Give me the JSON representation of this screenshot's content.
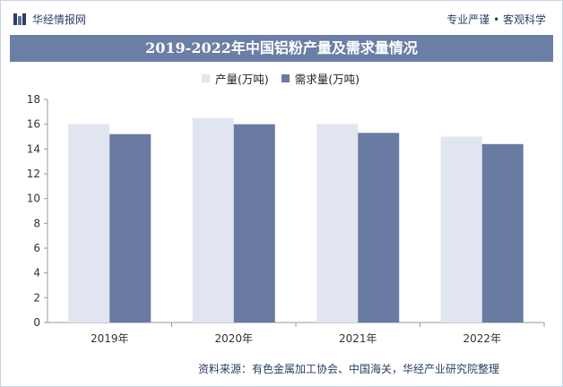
{
  "header": {
    "brand": "华经情报网",
    "tagline": "专业严谨 • 客观科学"
  },
  "colors": {
    "title_bg": "#6b7fa6",
    "production": "#e1e5ef",
    "demand": "#697ba3"
  },
  "chart_data": {
    "type": "bar",
    "title": "2019-2022年中国铝粉产量及需求量情况",
    "categories": [
      "2019年",
      "2020年",
      "2021年",
      "2022年"
    ],
    "series": [
      {
        "name": "产量(万吨)",
        "values": [
          16.0,
          16.5,
          16.0,
          15.0
        ]
      },
      {
        "name": "需求量(万吨)",
        "values": [
          15.2,
          16.0,
          15.3,
          14.4
        ]
      }
    ],
    "ylim": [
      0,
      18
    ],
    "yticks": [
      0,
      2,
      4,
      6,
      8,
      10,
      12,
      14,
      16,
      18
    ],
    "legend_position": "top-center",
    "grid": false
  },
  "footer": {
    "source": "资料来源：有色金属加工协会、中国海关，华经产业研究院整理"
  }
}
